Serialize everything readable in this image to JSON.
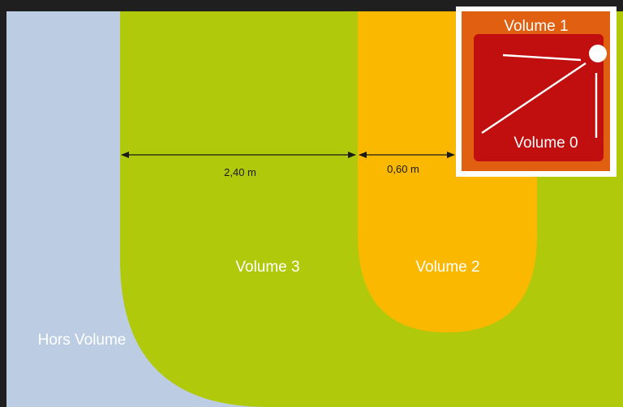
{
  "diagram": {
    "zones": {
      "hors_volume": {
        "label": "Hors Volume",
        "color": "#bccde3"
      },
      "volume_3": {
        "label": "Volume 3",
        "color": "#b1c90b"
      },
      "volume_2": {
        "label": "Volume 2",
        "color": "#fbb800"
      },
      "volume_1": {
        "label": "Volume 1",
        "color": "#e15f10"
      },
      "volume_0": {
        "label": "Volume 0",
        "color": "#c10f0f"
      }
    },
    "dimensions": {
      "volume_3_width": "2,40 m",
      "volume_2_width": "0,60 m"
    },
    "border_color": "#1f1f1f"
  }
}
